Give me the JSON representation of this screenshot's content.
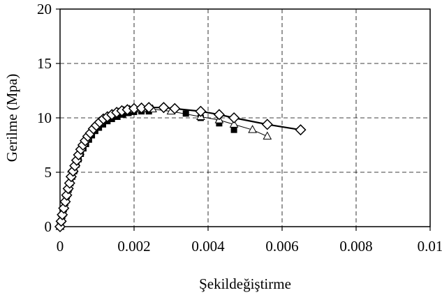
{
  "chart_data": {
    "type": "scatter",
    "title": "",
    "xlabel": "Şekildeğiştirme",
    "ylabel": "Gerilme (Mpa)",
    "xlim": [
      0,
      0.01
    ],
    "ylim": [
      0,
      20
    ],
    "xticks": [
      0,
      0.002,
      0.004,
      0.006,
      0.008,
      0.01
    ],
    "xtick_labels": [
      "0",
      "0.002",
      "0.004",
      "0.006",
      "0.008",
      "0.01"
    ],
    "yticks": [
      0,
      5,
      10,
      15,
      20
    ],
    "ytick_labels": [
      "0",
      "5",
      "10",
      "15",
      "20"
    ],
    "grid": "dashed",
    "legend": "none",
    "series": [
      {
        "marker": "square",
        "line": "none",
        "x": [
          0,
          3e-05,
          6e-05,
          0.0001,
          0.00014,
          0.00018,
          0.00023,
          0.00028,
          0.00033,
          0.00038,
          0.00044,
          0.0005,
          0.00056,
          0.00063,
          0.0007,
          0.00078,
          0.00086,
          0.00095,
          0.00105,
          0.00116,
          0.00128,
          0.0014,
          0.00155,
          0.0017,
          0.00185,
          0.002,
          0.0022,
          0.0024,
          0.0034,
          0.0038,
          0.0043,
          0.0047
        ],
        "y": [
          0,
          0.5,
          1.0,
          1.6,
          2.2,
          2.8,
          3.4,
          4.0,
          4.6,
          5.1,
          5.7,
          6.2,
          6.7,
          7.2,
          7.6,
          8.0,
          8.4,
          8.8,
          9.1,
          9.4,
          9.7,
          9.9,
          10.1,
          10.3,
          10.45,
          10.55,
          10.6,
          10.6,
          10.4,
          10.0,
          9.5,
          8.9
        ]
      },
      {
        "marker": "triangle",
        "line": "thin",
        "x": [
          0,
          3e-05,
          6e-05,
          0.0001,
          0.00014,
          0.00018,
          0.00022,
          0.00027,
          0.00032,
          0.00037,
          0.00042,
          0.00048,
          0.00054,
          0.0006,
          0.00067,
          0.00074,
          0.00082,
          0.0009,
          0.00099,
          0.00108,
          0.00118,
          0.0013,
          0.00143,
          0.00157,
          0.00172,
          0.00188,
          0.0022,
          0.0025,
          0.003,
          0.0038,
          0.0043,
          0.0047,
          0.0052,
          0.0056
        ],
        "y": [
          0,
          0.6,
          1.2,
          1.8,
          2.4,
          3.0,
          3.6,
          4.2,
          4.8,
          5.3,
          5.9,
          6.4,
          6.9,
          7.4,
          7.8,
          8.2,
          8.6,
          9.0,
          9.3,
          9.6,
          9.9,
          10.1,
          10.3,
          10.5,
          10.65,
          10.75,
          10.8,
          10.8,
          10.6,
          10.1,
          9.8,
          9.4,
          8.9,
          8.3
        ]
      },
      {
        "marker": "diamond",
        "line": "thick",
        "x": [
          0,
          3e-05,
          6e-05,
          0.0001,
          0.00014,
          0.00018,
          0.00022,
          0.00026,
          0.0003,
          0.00035,
          0.0004,
          0.00045,
          0.0005,
          0.00056,
          0.00062,
          0.00068,
          0.00075,
          0.00082,
          0.0009,
          0.00098,
          0.00107,
          0.00117,
          0.00128,
          0.0014,
          0.00153,
          0.00167,
          0.00182,
          0.002,
          0.0022,
          0.0024,
          0.0028,
          0.0031,
          0.0038,
          0.0043,
          0.0047,
          0.0056,
          0.0065
        ],
        "y": [
          0,
          0.5,
          1.1,
          1.7,
          2.3,
          2.9,
          3.5,
          4.0,
          4.6,
          5.1,
          5.6,
          6.1,
          6.6,
          7.1,
          7.5,
          7.9,
          8.3,
          8.6,
          9.0,
          9.3,
          9.6,
          9.9,
          10.1,
          10.3,
          10.5,
          10.65,
          10.75,
          10.85,
          10.9,
          10.95,
          10.95,
          10.85,
          10.6,
          10.3,
          10.0,
          9.4,
          8.9
        ]
      }
    ]
  }
}
